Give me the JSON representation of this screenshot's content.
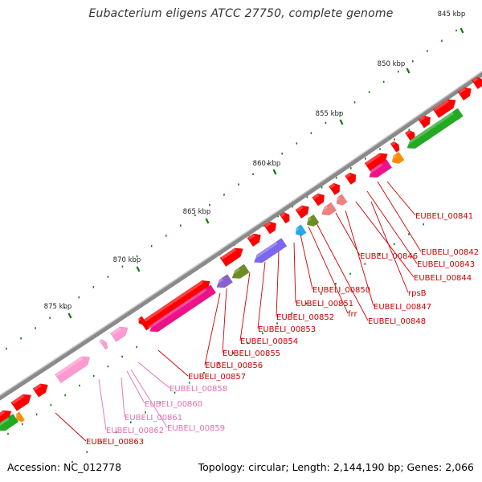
{
  "title": "Eubacterium eligens ATCC 27750, complete genome",
  "footer": {
    "accession": "Accession: NC_012778",
    "summary": "Topology: circular; Length: 2,144,190 bp; Genes: 2,066"
  },
  "ticks": [
    {
      "label": "845 kbp"
    },
    {
      "label": "850 kbp"
    },
    {
      "label": "855 kbp"
    },
    {
      "label": "860 kbp"
    },
    {
      "label": "865 kbp"
    },
    {
      "label": "870 kbp"
    },
    {
      "label": "875 kbp"
    }
  ],
  "colors": {
    "cds": "#ff0000",
    "cds_light": "#ff8fc8",
    "rna": "#ee1188",
    "backbone": "#888888",
    "tick": "#117711",
    "label_red": "#cc0000",
    "label_pink": "#e36fb0"
  },
  "gene_labels": [
    {
      "text": "EUBELI_00841",
      "color": "red"
    },
    {
      "text": "EUBELI_00842",
      "color": "red"
    },
    {
      "text": "EUBELI_00843",
      "color": "red"
    },
    {
      "text": "EUBELI_00844",
      "color": "red"
    },
    {
      "text": "EUBELI_00846",
      "color": "red"
    },
    {
      "text": "rpsB",
      "color": "red"
    },
    {
      "text": "EUBELI_00847",
      "color": "red"
    },
    {
      "text": "EUBELI_00848",
      "color": "red"
    },
    {
      "text": "frr",
      "color": "red"
    },
    {
      "text": "EUBELI_00850",
      "color": "red"
    },
    {
      "text": "EUBELI_00851",
      "color": "red"
    },
    {
      "text": "EUBELI_00852",
      "color": "red"
    },
    {
      "text": "EUBELI_00853",
      "color": "red"
    },
    {
      "text": "EUBELI_00854",
      "color": "red"
    },
    {
      "text": "EUBELI_00855",
      "color": "red"
    },
    {
      "text": "EUBELI_00856",
      "color": "red"
    },
    {
      "text": "EUBELI_00857",
      "color": "red"
    },
    {
      "text": "EUBELI_00858",
      "color": "pink"
    },
    {
      "text": "EUBELI_00860",
      "color": "pink"
    },
    {
      "text": "EUBELI_00861",
      "color": "pink"
    },
    {
      "text": "EUBELI_00859",
      "color": "pink"
    },
    {
      "text": "EUBELI_00862",
      "color": "pink"
    },
    {
      "text": "EUBELI_00863",
      "color": "red"
    }
  ]
}
